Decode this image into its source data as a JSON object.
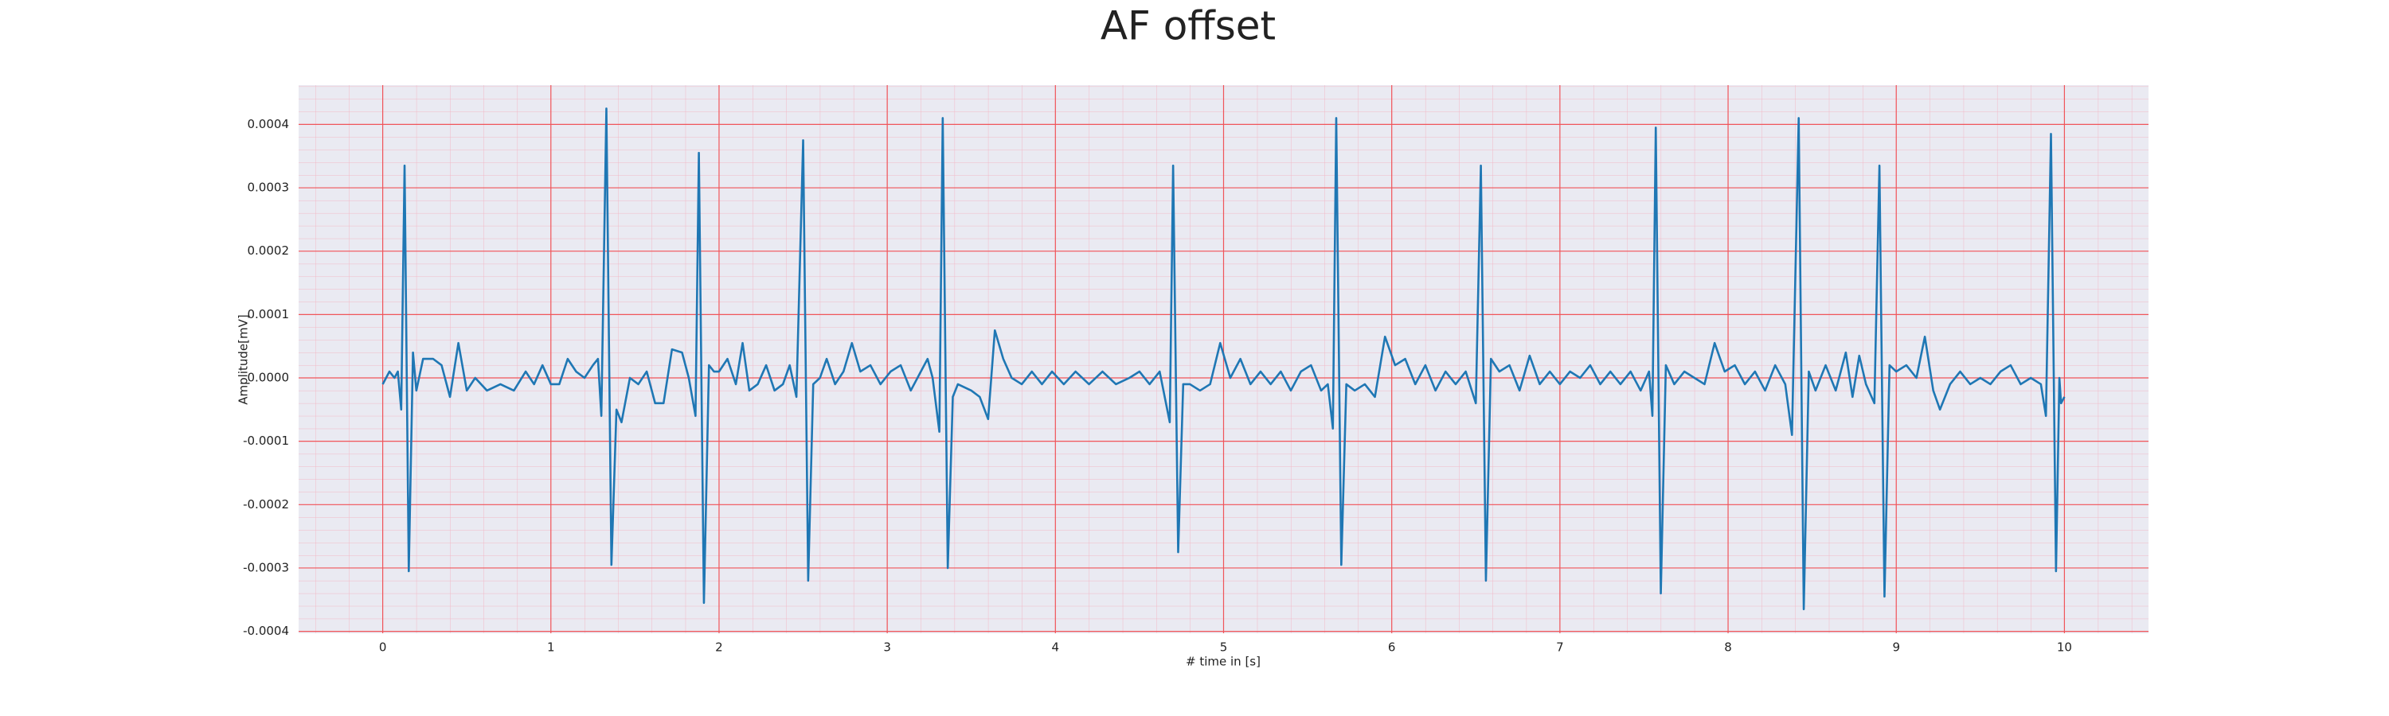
{
  "chart_data": {
    "type": "line",
    "title": "AF offset",
    "xlabel": "# time in [s]",
    "ylabel": "Amplitude[mV]",
    "color": "#1f77b4",
    "grid": true,
    "xlim": [
      -0.5,
      10.5
    ],
    "ylim": [
      -0.000403,
      0.000462
    ],
    "xticks": [
      0,
      1,
      2,
      3,
      4,
      5,
      6,
      7,
      8,
      9,
      10
    ],
    "yticks": [
      -0.0004,
      -0.0003,
      -0.0002,
      -0.0001,
      {
        "value": 0,
        "label": "0.0000"
      },
      0.0001,
      0.0002,
      0.0003,
      0.0004
    ],
    "x": [
      0,
      0.04,
      0.07,
      0.09,
      0.11,
      0.13,
      0.155,
      0.18,
      0.2,
      0.24,
      0.3,
      0.35,
      0.4,
      0.45,
      0.5,
      0.55,
      0.62,
      0.7,
      0.78,
      0.85,
      0.9,
      0.95,
      1.0,
      1.05,
      1.1,
      1.15,
      1.2,
      1.25,
      1.28,
      1.3,
      1.33,
      1.36,
      1.39,
      1.42,
      1.47,
      1.52,
      1.57,
      1.62,
      1.67,
      1.72,
      1.78,
      1.82,
      1.86,
      1.88,
      1.91,
      1.94,
      1.97,
      2.0,
      2.05,
      2.1,
      2.14,
      2.18,
      2.23,
      2.28,
      2.33,
      2.38,
      2.42,
      2.46,
      2.5,
      2.53,
      2.56,
      2.6,
      2.64,
      2.69,
      2.74,
      2.79,
      2.84,
      2.9,
      2.96,
      3.02,
      3.08,
      3.14,
      3.2,
      3.24,
      3.27,
      3.31,
      3.33,
      3.36,
      3.39,
      3.42,
      3.46,
      3.5,
      3.55,
      3.6,
      3.64,
      3.69,
      3.74,
      3.8,
      3.86,
      3.92,
      3.98,
      4.05,
      4.12,
      4.2,
      4.28,
      4.36,
      4.44,
      4.5,
      4.56,
      4.62,
      4.68,
      4.7,
      4.73,
      4.76,
      4.8,
      4.86,
      4.92,
      4.98,
      5.04,
      5.1,
      5.16,
      5.22,
      5.28,
      5.34,
      5.4,
      5.46,
      5.52,
      5.58,
      5.62,
      5.65,
      5.67,
      5.7,
      5.73,
      5.78,
      5.84,
      5.9,
      5.96,
      6.02,
      6.08,
      6.14,
      6.2,
      6.26,
      6.32,
      6.38,
      6.44,
      6.5,
      6.53,
      6.56,
      6.59,
      6.64,
      6.7,
      6.76,
      6.82,
      6.88,
      6.94,
      7.0,
      7.06,
      7.12,
      7.18,
      7.24,
      7.3,
      7.36,
      7.42,
      7.48,
      7.53,
      7.55,
      7.57,
      7.6,
      7.63,
      7.68,
      7.74,
      7.8,
      7.86,
      7.92,
      7.98,
      8.04,
      8.1,
      8.16,
      8.22,
      8.28,
      8.34,
      8.38,
      8.42,
      8.45,
      8.48,
      8.52,
      8.58,
      8.64,
      8.7,
      8.74,
      8.78,
      8.82,
      8.87,
      8.9,
      8.93,
      8.96,
      9.0,
      9.06,
      9.12,
      9.17,
      9.22,
      9.26,
      9.32,
      9.38,
      9.44,
      9.5,
      9.56,
      9.62,
      9.68,
      9.74,
      9.8,
      9.86,
      9.89,
      9.92,
      9.95,
      9.97,
      9.98,
      10.0
    ],
    "values": [
      -1e-05,
      1e-05,
      0,
      1e-05,
      -5e-05,
      0.000335,
      -0.000305,
      4e-05,
      -2e-05,
      3e-05,
      3e-05,
      2e-05,
      -3e-05,
      5.5e-05,
      -2e-05,
      0,
      -2e-05,
      -1e-05,
      -2e-05,
      1e-05,
      -1e-05,
      2e-05,
      -1e-05,
      -1e-05,
      3e-05,
      1e-05,
      0,
      2e-05,
      3e-05,
      -6e-05,
      0.000425,
      -0.000295,
      -5e-05,
      -7e-05,
      0,
      -1e-05,
      1e-05,
      -4e-05,
      -4e-05,
      4.5e-05,
      4e-05,
      0,
      -6e-05,
      0.000355,
      -0.000355,
      2e-05,
      1e-05,
      1e-05,
      3e-05,
      -1e-05,
      5.5e-05,
      -2e-05,
      -1e-05,
      2e-05,
      -2e-05,
      -1e-05,
      2e-05,
      -3e-05,
      0.000375,
      -0.00032,
      -1e-05,
      0,
      3e-05,
      -1e-05,
      1e-05,
      5.5e-05,
      1e-05,
      2e-05,
      -1e-05,
      1e-05,
      2e-05,
      -2e-05,
      1e-05,
      3e-05,
      0,
      -8.5e-05,
      0.00041,
      -0.0003,
      -3e-05,
      -1e-05,
      -1.5e-05,
      -2e-05,
      -3e-05,
      -6.5e-05,
      7.5e-05,
      3e-05,
      0,
      -1e-05,
      1e-05,
      -1e-05,
      1e-05,
      -1e-05,
      1e-05,
      -1e-05,
      1e-05,
      -1e-05,
      0,
      1e-05,
      -1e-05,
      1e-05,
      -7e-05,
      0.000335,
      -0.000275,
      -1e-05,
      -1e-05,
      -2e-05,
      -1e-05,
      5.5e-05,
      0,
      3e-05,
      -1e-05,
      1e-05,
      -1e-05,
      1e-05,
      -2e-05,
      1e-05,
      2e-05,
      -2e-05,
      -1e-05,
      -8e-05,
      0.00041,
      -0.000295,
      -1e-05,
      -2e-05,
      -1e-05,
      -3e-05,
      6.5e-05,
      2e-05,
      3e-05,
      -1e-05,
      2e-05,
      -2e-05,
      1e-05,
      -1e-05,
      1e-05,
      -4e-05,
      0.000335,
      -0.00032,
      3e-05,
      1e-05,
      2e-05,
      -2e-05,
      3.5e-05,
      -1e-05,
      1e-05,
      -1e-05,
      1e-05,
      0,
      2e-05,
      -1e-05,
      1e-05,
      -1e-05,
      1e-05,
      -2e-05,
      1e-05,
      -6e-05,
      0.000395,
      -0.00034,
      2e-05,
      -1e-05,
      1e-05,
      0,
      -1e-05,
      5.5e-05,
      1e-05,
      2e-05,
      -1e-05,
      1e-05,
      -2e-05,
      2e-05,
      -1e-05,
      -9e-05,
      0.00041,
      -0.000365,
      1e-05,
      -2e-05,
      2e-05,
      -2e-05,
      4e-05,
      -3e-05,
      3.5e-05,
      -1e-05,
      -4e-05,
      0.000335,
      -0.000345,
      2e-05,
      1e-05,
      2e-05,
      0,
      6.5e-05,
      -2e-05,
      -5e-05,
      -1e-05,
      1e-05,
      -1e-05,
      0,
      -1e-05,
      1e-05,
      2e-05,
      -1e-05,
      0,
      -1e-05,
      -6e-05,
      0.000385,
      -0.000305,
      0,
      -4e-05,
      -3e-05
    ]
  }
}
